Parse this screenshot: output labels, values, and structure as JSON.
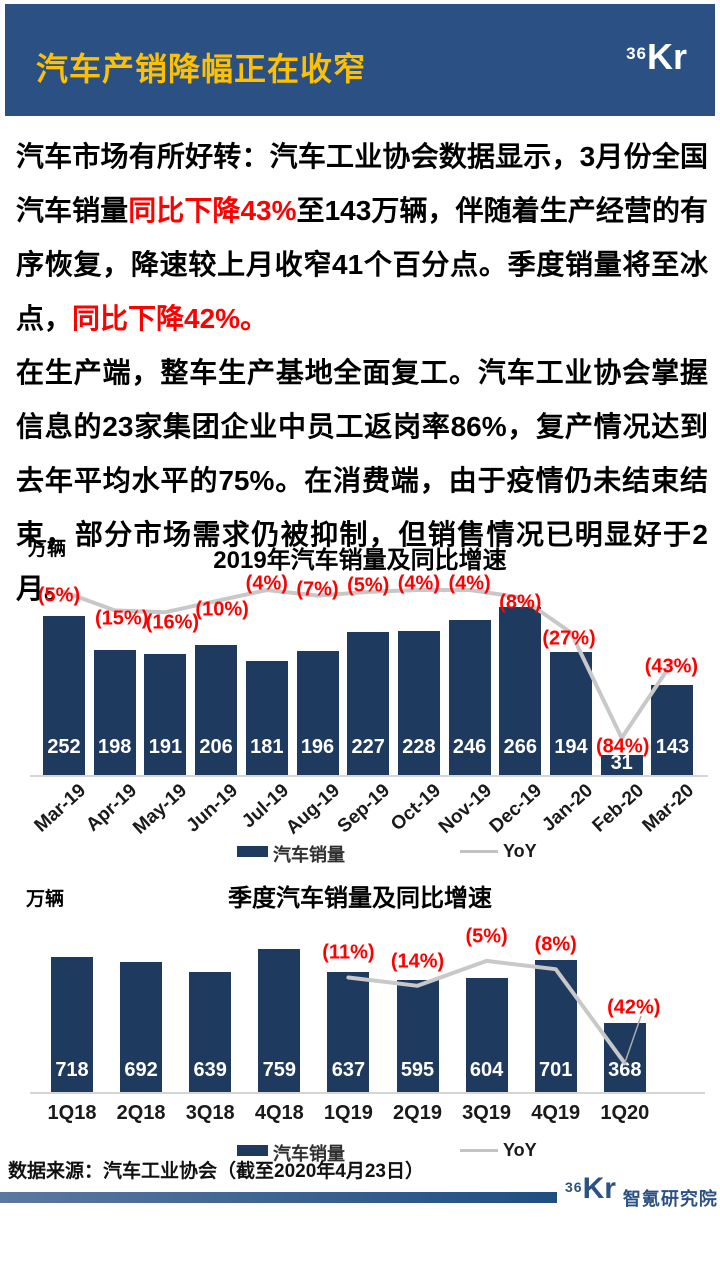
{
  "header": {
    "title": "汽车产销降幅正在收窄",
    "logo_sup": "36",
    "logo_main": "Kr"
  },
  "body": {
    "p1_segments": [
      {
        "text": "汽车市场有所好转：",
        "style": "bold"
      },
      {
        "text": "汽车工业协会数据显示，3月份全国汽车销量",
        "style": "normal"
      },
      {
        "text": "同比下降43%",
        "style": "red"
      },
      {
        "text": "至143万辆，伴随着生产经营的有序恢复，降速较上月收窄41个百分点。季度销量将至冰点，",
        "style": "normal"
      },
      {
        "text": "同比下降42%。",
        "style": "red"
      }
    ],
    "p2_segments": [
      {
        "text": "在生产端，整车生产基地全面复工。汽车工业协会掌握信息的23家集团企业中员工返岗率86%，复产情况达到去年平均水平的75%。在消费端，",
        "style": "normal"
      },
      {
        "text": "由于疫情仍未结束结束，部分市场需求仍被抑制，但销售情况已明显好于2月。",
        "style": "bold"
      }
    ]
  },
  "chart_data": [
    {
      "type": "bar",
      "title": "2019年汽车销量及同比增速",
      "ylabel": "万辆",
      "legend_position": "bottom",
      "grid": false,
      "categories": [
        "Mar-19",
        "Apr-19",
        "May-19",
        "Jun-19",
        "Jul-19",
        "Aug-19",
        "Sep-19",
        "Oct-19",
        "Nov-19",
        "Dec-19",
        "Jan-20",
        "Feb-20",
        "Mar-20"
      ],
      "series": [
        {
          "name": "汽车销量",
          "type": "bar",
          "values": [
            252,
            198,
            191,
            206,
            181,
            196,
            227,
            228,
            246,
            266,
            194,
            31,
            143
          ],
          "color": "#1F3A5F"
        },
        {
          "name": "YoY",
          "type": "line",
          "values_pct": [
            -5,
            -15,
            -16,
            -10,
            -4,
            -7,
            -5,
            -4,
            -4,
            -8,
            -27,
            -84,
            -43
          ],
          "point_labels": [
            "(5%)",
            "(15%)",
            "(16%)",
            "(10%)",
            "(4%)",
            "(7%)",
            "(5%)",
            "(4%)",
            "(4%)",
            "(8%)",
            "(27%)",
            "(84%)",
            "(43%)"
          ],
          "color": "#C8C8C8",
          "label_color": "#FE0000"
        }
      ]
    },
    {
      "type": "bar",
      "title": "季度汽车销量及同比增速",
      "ylabel": "万辆",
      "legend_position": "bottom",
      "grid": false,
      "categories": [
        "1Q18",
        "2Q18",
        "3Q18",
        "4Q18",
        "1Q19",
        "2Q19",
        "3Q19",
        "4Q19",
        "1Q20"
      ],
      "series": [
        {
          "name": "汽车销量",
          "type": "bar",
          "values": [
            718,
            692,
            639,
            759,
            637,
            595,
            604,
            701,
            368
          ],
          "color": "#1F3A5F"
        },
        {
          "name": "YoY",
          "type": "line",
          "values_pct": [
            null,
            null,
            null,
            null,
            -11,
            -14,
            -5,
            -8,
            -42
          ],
          "point_labels": [
            "",
            "",
            "",
            "",
            "(11%)",
            "(14%)",
            "(5%)",
            "(8%)",
            "(42%)"
          ],
          "color": "#C8C8C8",
          "label_color": "#FE0000"
        }
      ]
    }
  ],
  "footer": {
    "source": "数据来源：汽车工业协会（截至2020年4月23日）",
    "logo_sup": "36",
    "logo_main": "Kr",
    "logo_text": "智氪研究院"
  },
  "colors": {
    "header_bg": "#2B5184",
    "title_yellow": "#FFC000",
    "bar_navy": "#1F3A5F",
    "yoy_gray": "#C8C8C8",
    "pct_red": "#FE0000"
  }
}
